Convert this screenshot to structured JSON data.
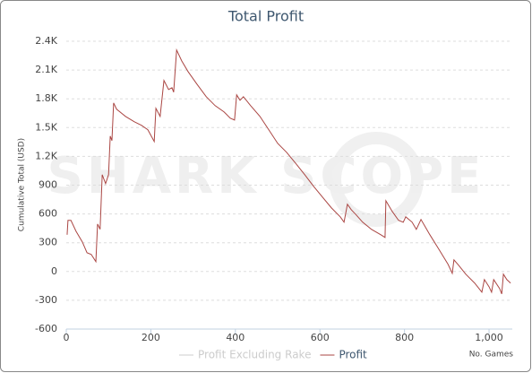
{
  "chart_data": {
    "type": "line",
    "title": "Total Profit",
    "watermark": "SHARK SCOPE",
    "xlabel": "No. Games",
    "ylabel": "Cumulative Total (USD)",
    "xlim": [
      0,
      1055
    ],
    "ylim": [
      -600,
      2400
    ],
    "xticks": [
      0,
      200,
      400,
      600,
      800,
      {
        "value": 1000,
        "label": "1,000"
      }
    ],
    "yticks": [
      {
        "value": -600,
        "label": "-600"
      },
      {
        "value": -300,
        "label": "-300"
      },
      0,
      300,
      600,
      900,
      {
        "value": 1200,
        "label": "1.2K"
      },
      {
        "value": 1500,
        "label": "1.5K"
      },
      {
        "value": 1800,
        "label": "1.8K"
      },
      {
        "value": 2100,
        "label": "2.1K"
      },
      {
        "value": 2400,
        "label": "2.4K"
      }
    ],
    "grid": true,
    "legend": "bottom",
    "x": [
      2,
      4,
      11,
      23,
      38,
      49,
      59,
      70,
      74,
      80,
      85,
      93,
      100,
      104,
      108,
      112,
      119,
      140,
      161,
      178,
      193,
      208,
      212,
      222,
      231,
      242,
      250,
      254,
      261,
      273,
      288,
      309,
      331,
      352,
      373,
      388,
      398,
      403,
      411,
      419,
      436,
      458,
      479,
      500,
      521,
      542,
      564,
      585,
      606,
      627,
      648,
      657,
      665,
      674,
      686,
      701,
      722,
      744,
      754,
      756,
      771,
      786,
      797,
      803,
      818,
      828,
      839,
      860,
      881,
      903,
      913,
      917,
      928,
      945,
      966,
      983,
      989,
      1000,
      1006,
      1011,
      1025,
      1030,
      1034,
      1042,
      1051
    ],
    "series": [
      {
        "name": "Profit Excluding Rake",
        "color": "#cccccc",
        "visible": false
      },
      {
        "name": "Profit",
        "color": "#aa4643",
        "values": [
          383,
          533,
          533,
          420,
          308,
          196,
          178,
          103,
          495,
          440,
          1009,
          916,
          1009,
          1411,
          1364,
          1757,
          1692,
          1617,
          1561,
          1523,
          1477,
          1355,
          1701,
          1617,
          1991,
          1897,
          1916,
          1869,
          2308,
          2196,
          2084,
          1953,
          1822,
          1729,
          1664,
          1598,
          1579,
          1841,
          1785,
          1822,
          1729,
          1617,
          1477,
          1336,
          1243,
          1131,
          1009,
          888,
          776,
          664,
          570,
          514,
          701,
          645,
          589,
          514,
          439,
          383,
          355,
          738,
          626,
          533,
          514,
          570,
          514,
          439,
          542,
          383,
          234,
          75,
          -19,
          121,
          65,
          -28,
          -121,
          -215,
          -84,
          -159,
          -215,
          -84,
          -178,
          -234,
          -28,
          -84,
          -121
        ]
      }
    ]
  }
}
